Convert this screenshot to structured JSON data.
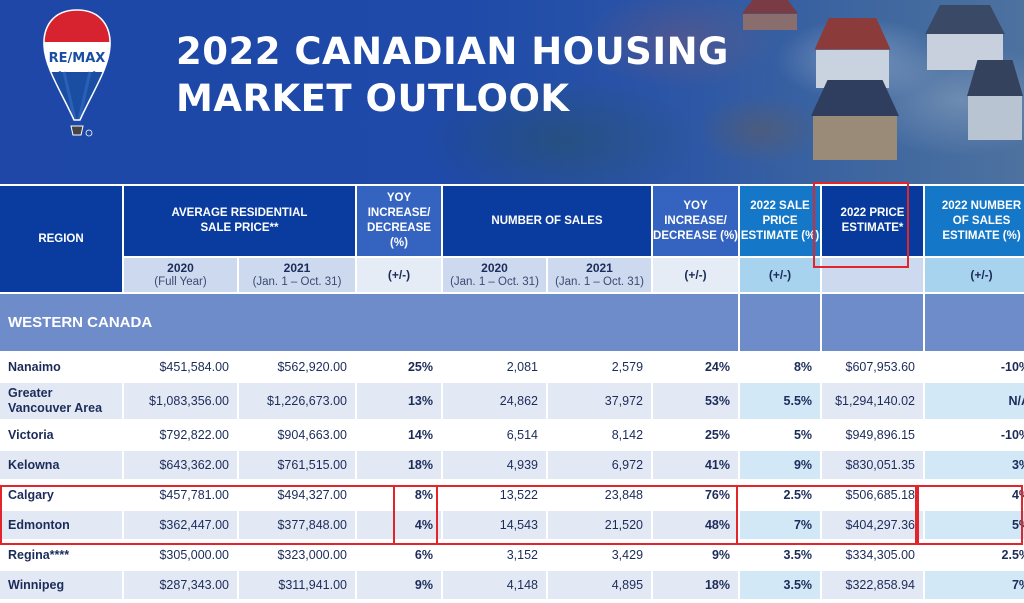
{
  "header": {
    "logo_text": "RE/MAX",
    "title_line1": "2022 CANADIAN HOUSING",
    "title_line2": "MARKET OUTLOOK"
  },
  "table": {
    "columns": {
      "region": "REGION",
      "avg_price": "AVERAGE RESIDENTIAL SALE PRICE**",
      "yoy_price": "YOY INCREASE/ DECREASE (%)",
      "num_sales": "NUMBER OF SALES",
      "yoy_sales": "YOY INCREASE/ DECREASE (%)",
      "sale_price_est": "2022 SALE PRICE ESTIMATE (%)",
      "price_est": "2022 PRICE ESTIMATE*",
      "sales_est": "2022 NUMBER OF SALES ESTIMATE (%)"
    },
    "subheaders": {
      "avg_2020_year": "2020",
      "avg_2020_range": "(Full Year)",
      "avg_2021_year": "2021",
      "avg_2021_range": "(Jan. 1 – Oct. 31)",
      "yoy_price": "(+/-)",
      "sales_2020_year": "2020",
      "sales_2020_range": "(Jan. 1 – Oct. 31)",
      "sales_2021_year": "2021",
      "sales_2021_range": "(Jan. 1 – Oct. 31)",
      "yoy_sales": "(+/-)",
      "sale_price_est": "(+/-)",
      "sales_est": "(+/-)"
    },
    "section": "WESTERN CANADA",
    "rows": [
      {
        "region": "Nanaimo",
        "price_2020": "$451,584.00",
        "price_2021": "$562,920.00",
        "yoy_price": "25%",
        "sales_2020": "2,081",
        "sales_2021": "2,579",
        "yoy_sales": "24%",
        "sale_price_est": "8%",
        "price_est": "$607,953.60",
        "sales_est": "-10%"
      },
      {
        "region": "Greater Vancouver Area",
        "price_2020": "$1,083,356.00",
        "price_2021": "$1,226,673.00",
        "yoy_price": "13%",
        "sales_2020": "24,862",
        "sales_2021": "37,972",
        "yoy_sales": "53%",
        "sale_price_est": "5.5%",
        "price_est": "$1,294,140.02",
        "sales_est": "N/A"
      },
      {
        "region": "Victoria",
        "price_2020": "$792,822.00",
        "price_2021": "$904,663.00",
        "yoy_price": "14%",
        "sales_2020": "6,514",
        "sales_2021": "8,142",
        "yoy_sales": "25%",
        "sale_price_est": "5%",
        "price_est": "$949,896.15",
        "sales_est": "-10%"
      },
      {
        "region": "Kelowna",
        "price_2020": "$643,362.00",
        "price_2021": "$761,515.00",
        "yoy_price": "18%",
        "sales_2020": "4,939",
        "sales_2021": "6,972",
        "yoy_sales": "41%",
        "sale_price_est": "9%",
        "price_est": "$830,051.35",
        "sales_est": "3%"
      },
      {
        "region": "Calgary",
        "price_2020": "$457,781.00",
        "price_2021": "$494,327.00",
        "yoy_price": "8%",
        "sales_2020": "13,522",
        "sales_2021": "23,848",
        "yoy_sales": "76%",
        "sale_price_est": "2.5%",
        "price_est": "$506,685.18",
        "sales_est": "4%"
      },
      {
        "region": "Edmonton",
        "price_2020": "$362,447.00",
        "price_2021": "$377,848.00",
        "yoy_price": "4%",
        "sales_2020": "14,543",
        "sales_2021": "21,520",
        "yoy_sales": "48%",
        "sale_price_est": "7%",
        "price_est": "$404,297.36",
        "sales_est": "5%"
      },
      {
        "region": "Regina****",
        "price_2020": "$305,000.00",
        "price_2021": "$323,000.00",
        "yoy_price": "6%",
        "sales_2020": "3,152",
        "sales_2021": "3,429",
        "yoy_sales": "9%",
        "sale_price_est": "3.5%",
        "price_est": "$334,305.00",
        "sales_est": "2.5%"
      },
      {
        "region": "Winnipeg",
        "price_2020": "$287,343.00",
        "price_2021": "$311,941.00",
        "yoy_price": "9%",
        "sales_2020": "4,148",
        "sales_2021": "4,895",
        "yoy_sales": "18%",
        "sale_price_est": "3.5%",
        "price_est": "$322,858.94",
        "sales_est": "7%"
      }
    ]
  },
  "colors": {
    "brand_blue": "#0a3ca0",
    "brand_red": "#e3242b",
    "section_band": "#6f8cca",
    "highlight_box": "#e3242b"
  }
}
